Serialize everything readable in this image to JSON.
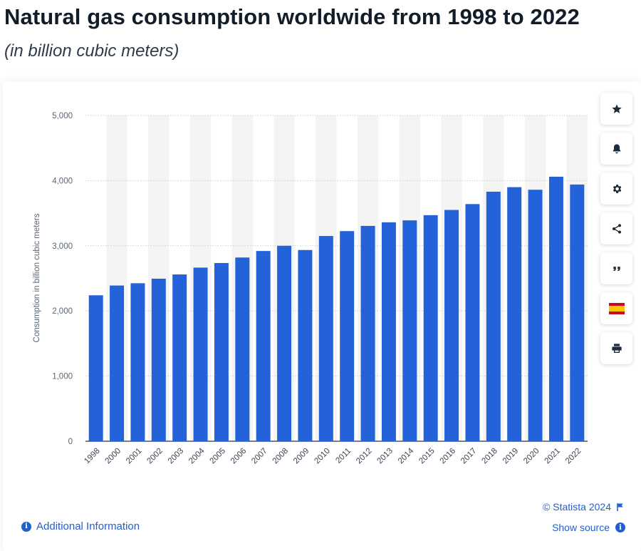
{
  "header": {
    "title": "Natural gas consumption worldwide from 1998 to 2022",
    "subtitle": "(in billion cubic meters)"
  },
  "toolbar": {
    "buttons": [
      {
        "name": "favorite",
        "icon": "star-icon"
      },
      {
        "name": "notification",
        "icon": "bell-icon"
      },
      {
        "name": "settings",
        "icon": "gear-icon"
      },
      {
        "name": "share",
        "icon": "share-icon"
      },
      {
        "name": "cite",
        "icon": "quote-icon"
      },
      {
        "name": "language",
        "icon": "spain-flag-icon"
      },
      {
        "name": "print",
        "icon": "printer-icon"
      }
    ]
  },
  "footer": {
    "additional_info": "Additional Information",
    "copyright": "© Statista 2024",
    "show_source": "Show source"
  },
  "colors": {
    "bar": "#2462d9",
    "accent": "#1f5fce",
    "stripe": "#f4f4f4",
    "axis_text": "#5a6573"
  },
  "chart_data": {
    "type": "bar",
    "ylabel": "Consumption in billion cubic meters",
    "ylim": [
      0,
      5000
    ],
    "yticks": [
      0,
      1000,
      2000,
      3000,
      4000,
      5000
    ],
    "ytick_labels": [
      "0",
      "1,000",
      "2,000",
      "3,000",
      "4,000",
      "5,000"
    ],
    "grid": true,
    "categories": [
      "1998",
      "2000",
      "2001",
      "2002",
      "2003",
      "2004",
      "2005",
      "2006",
      "2007",
      "2008",
      "2009",
      "2010",
      "2011",
      "2012",
      "2013",
      "2014",
      "2015",
      "2016",
      "2017",
      "2018",
      "2019",
      "2020",
      "2021",
      "2022"
    ],
    "values": [
      2240,
      2390,
      2425,
      2495,
      2560,
      2665,
      2735,
      2820,
      2920,
      3000,
      2935,
      3150,
      3225,
      3305,
      3360,
      3390,
      3470,
      3550,
      3640,
      3830,
      3900,
      3860,
      4060,
      3940
    ]
  }
}
